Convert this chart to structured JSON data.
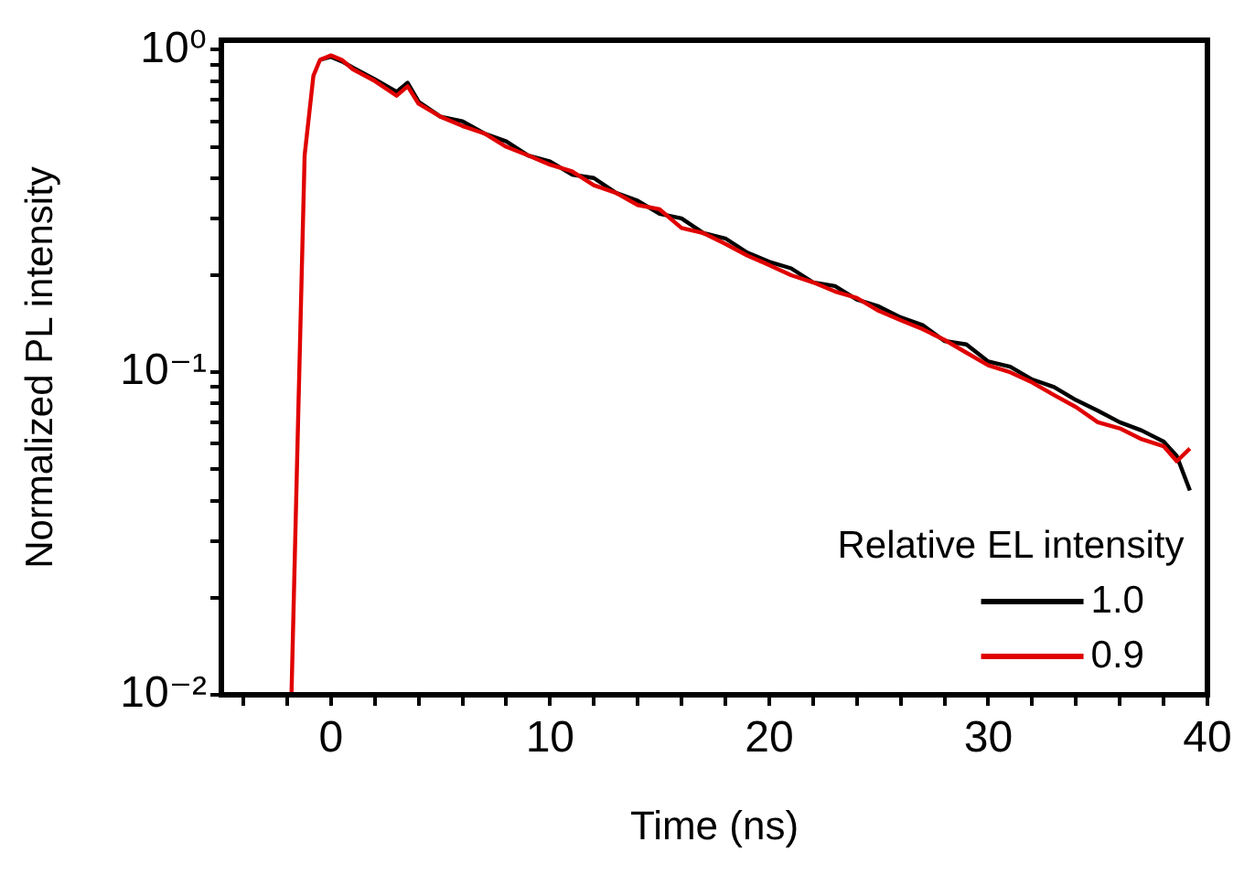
{
  "chart_data": {
    "type": "line",
    "xlabel": "Time (ns)",
    "ylabel": "Normalized PL intensity",
    "legend_title": "Relative EL intensity",
    "legend": "bottom right",
    "log": "y",
    "grid": false,
    "marker": "none",
    "line_style": "solid",
    "xlim": [
      -5,
      40
    ],
    "xticks": [
      {
        "value": -4,
        "label": null
      },
      {
        "value": -2,
        "label": null
      },
      0,
      {
        "value": 2,
        "label": null
      },
      {
        "value": 4,
        "label": null
      },
      {
        "value": 6,
        "label": null
      },
      {
        "value": 8,
        "label": null
      },
      10,
      {
        "value": 12,
        "label": null
      },
      {
        "value": 14,
        "label": null
      },
      {
        "value": 16,
        "label": null
      },
      {
        "value": 18,
        "label": null
      },
      20,
      {
        "value": 22,
        "label": null
      },
      {
        "value": 24,
        "label": null
      },
      {
        "value": 26,
        "label": null
      },
      {
        "value": 28,
        "label": null
      },
      30,
      {
        "value": 32,
        "label": null
      },
      {
        "value": 34,
        "label": null
      },
      {
        "value": 36,
        "label": null
      },
      {
        "value": 38,
        "label": null
      },
      40
    ],
    "ylim": [
      0.01,
      1.07
    ],
    "yticks": [
      {
        "value": 0.01,
        "label": "10⁻²"
      },
      {
        "value": 0.02,
        "label": null
      },
      {
        "value": 0.03,
        "label": null
      },
      {
        "value": 0.04,
        "label": null
      },
      {
        "value": 0.05,
        "label": null
      },
      {
        "value": 0.06,
        "label": null
      },
      {
        "value": 0.07,
        "label": null
      },
      {
        "value": 0.08,
        "label": null
      },
      {
        "value": 0.09,
        "label": null
      },
      {
        "value": 0.1,
        "label": "10⁻¹"
      },
      {
        "value": 0.2,
        "label": null
      },
      {
        "value": 0.3,
        "label": null
      },
      {
        "value": 0.4,
        "label": null
      },
      {
        "value": 0.5,
        "label": null
      },
      {
        "value": 0.6,
        "label": null
      },
      {
        "value": 0.7,
        "label": null
      },
      {
        "value": 0.8,
        "label": null
      },
      {
        "value": 0.9,
        "label": null
      },
      {
        "value": 1,
        "label": "10⁰"
      }
    ],
    "x": [
      -1.8,
      -1.5,
      -1.2,
      -0.8,
      -0.5,
      0,
      0.5,
      1,
      2,
      3,
      3.5,
      4,
      5,
      6,
      7,
      8,
      9,
      10,
      11,
      12,
      13,
      14,
      15,
      16,
      17,
      18,
      19,
      20,
      21,
      22,
      23,
      24,
      25,
      26,
      27,
      28,
      29,
      30,
      31,
      32,
      33,
      34,
      35,
      36,
      37,
      38,
      38.6,
      39.2
    ],
    "series": [
      {
        "name": "1.0",
        "color": "#000000",
        "values": [
          null,
          null,
          null,
          null,
          0.93,
          0.95,
          0.92,
          0.88,
          0.81,
          0.74,
          0.79,
          0.69,
          0.62,
          0.6,
          0.55,
          0.52,
          0.47,
          0.45,
          0.41,
          0.4,
          0.36,
          0.34,
          0.31,
          0.3,
          0.27,
          0.26,
          0.235,
          0.22,
          0.21,
          0.19,
          0.185,
          0.168,
          0.16,
          0.148,
          0.14,
          0.125,
          0.122,
          0.108,
          0.104,
          0.095,
          0.09,
          0.082,
          0.076,
          0.07,
          0.066,
          0.061,
          0.055,
          0.043
        ]
      },
      {
        "name": "0.9",
        "color": "#e00000",
        "values": [
          0.01,
          0.07,
          0.47,
          0.83,
          0.93,
          0.96,
          0.93,
          0.87,
          0.8,
          0.72,
          0.77,
          0.68,
          0.62,
          0.58,
          0.55,
          0.5,
          0.47,
          0.44,
          0.42,
          0.38,
          0.36,
          0.33,
          0.32,
          0.28,
          0.27,
          0.25,
          0.23,
          0.215,
          0.2,
          0.19,
          0.178,
          0.17,
          0.155,
          0.145,
          0.136,
          0.126,
          0.115,
          0.105,
          0.1,
          0.093,
          0.085,
          0.078,
          0.07,
          0.067,
          0.062,
          0.059,
          0.053,
          0.058
        ]
      }
    ]
  }
}
